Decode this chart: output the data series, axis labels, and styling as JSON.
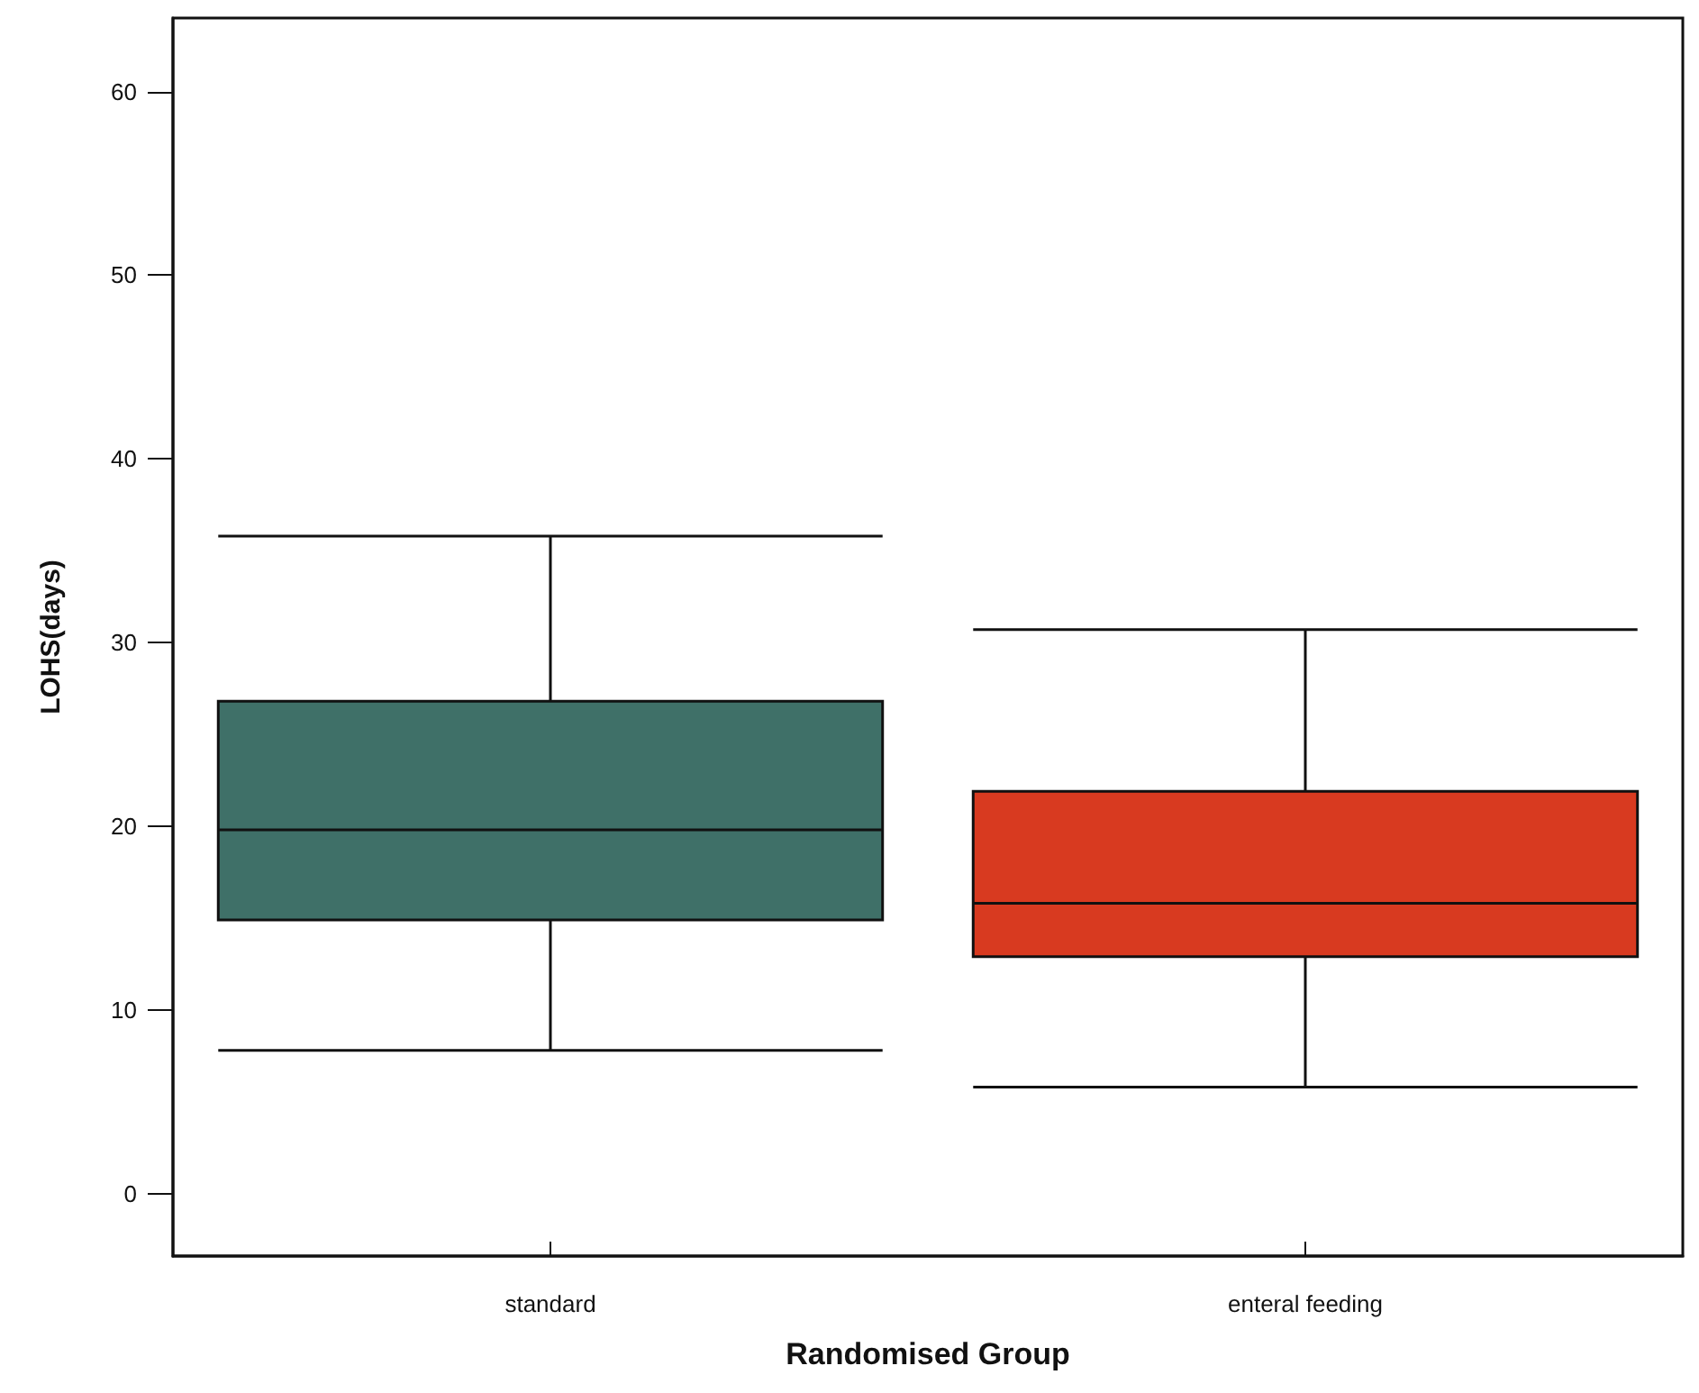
{
  "chart_data": {
    "type": "box",
    "xlabel": "Randomised Group",
    "ylabel": "LOHS(days)",
    "categories": [
      "standard",
      "enteral feeding"
    ],
    "colors": [
      "#3f7068",
      "#d83a20"
    ],
    "boxes": [
      {
        "low": 7.8,
        "q1": 14.9,
        "median": 19.8,
        "q3": 26.8,
        "high": 35.8
      },
      {
        "low": 5.8,
        "q1": 12.9,
        "median": 15.8,
        "q3": 21.9,
        "high": 30.7
      }
    ],
    "ylim": [
      -3.4,
      64
    ],
    "yticks": [
      0,
      10,
      20,
      30,
      40,
      50,
      60
    ],
    "grid": false
  }
}
